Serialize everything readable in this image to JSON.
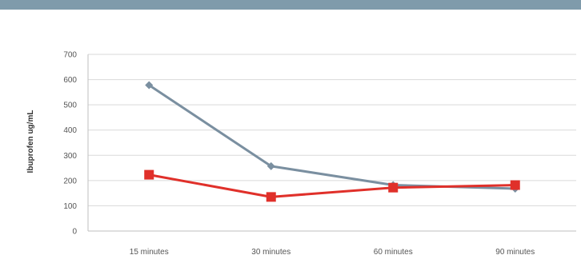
{
  "chart_data": {
    "type": "line",
    "title": "",
    "xlabel": "",
    "ylabel": "Ibuprofen ug/mL",
    "categories": [
      "15 minutes",
      "30 minutes",
      "60 minutes",
      "90 minutes"
    ],
    "ylim": [
      0,
      700
    ],
    "yticks": [
      0,
      100,
      200,
      300,
      400,
      500,
      600,
      700
    ],
    "grid": true,
    "legend": "none",
    "series": [
      {
        "values": [
          578,
          257,
          182,
          168
        ],
        "color": "#7a8fa0",
        "marker": "diamond"
      },
      {
        "values": [
          223,
          135,
          172,
          182
        ],
        "color": "#e0302a",
        "marker": "square"
      }
    ]
  },
  "colors": {
    "banner": "#7f9bab",
    "grid": "#d9d9d9",
    "axis": "#bfbfbf"
  }
}
